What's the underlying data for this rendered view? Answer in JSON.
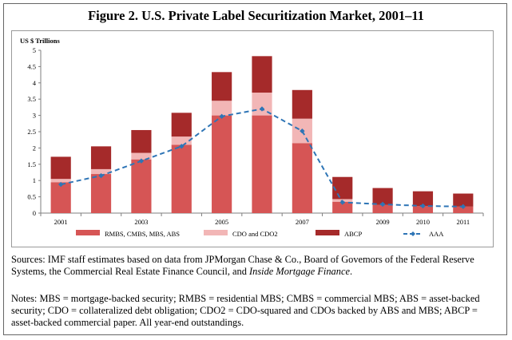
{
  "figure": {
    "title": "Figure 2. U.S. Private Label Securitization Market, 2001–11"
  },
  "chart_data": {
    "type": "bar",
    "stacked": true,
    "ylabel": "US $ Trillions",
    "ylim": [
      0,
      5
    ],
    "yticks": [
      "0",
      "0.5",
      "1",
      "1.5",
      "2",
      "2.5",
      "3",
      "3.5",
      "4",
      "4.5",
      "5"
    ],
    "categories": [
      "2001",
      "2002",
      "2003",
      "2004",
      "2005",
      "2006",
      "2007",
      "2008",
      "2009",
      "2010",
      "2011"
    ],
    "xtick_labels": [
      "2001",
      "",
      "2003",
      "",
      "2005",
      "",
      "2007",
      "",
      "2009",
      "2010",
      "2011"
    ],
    "series": [
      {
        "name": "RMBS, CMBS, MBS, ABS",
        "color": "#d65555",
        "values": [
          0.95,
          1.2,
          1.65,
          2.1,
          3.0,
          3.0,
          2.15,
          0.35,
          0.25,
          0.22,
          0.2
        ]
      },
      {
        "name": "CDO and CDO2",
        "color": "#f2b6b6",
        "values": [
          0.1,
          0.15,
          0.2,
          0.25,
          0.45,
          0.7,
          0.75,
          0.08,
          0.0,
          0.0,
          0.0
        ]
      },
      {
        "name": "ABCP",
        "color": "#a52a2a",
        "values": [
          0.68,
          0.7,
          0.7,
          0.73,
          0.88,
          1.12,
          0.88,
          0.68,
          0.52,
          0.45,
          0.4
        ]
      },
      {
        "name": "AAA",
        "type": "line",
        "color": "#2e75b6",
        "values": [
          0.88,
          1.15,
          1.6,
          2.05,
          2.97,
          3.2,
          2.52,
          0.33,
          0.27,
          0.22,
          0.2
        ]
      }
    ],
    "legend": "bottom"
  },
  "sources": {
    "lead": "Sources: IMF staff estimates based on data from JPMorgan Chase & Co., Board of Govemors of the Federal Reserve Systems, the Commercial Real Estate Finance Council, and ",
    "italic": "Inside Mortgage Finance",
    "tail": "."
  },
  "notes": {
    "text": "Notes: MBS = mortgage-backed security; RMBS = residential MBS; CMBS = commercial MBS; ABS = asset-backed security; CDO = collateralized debt obligation; CDO2 = CDO-squared and CDOs backed by ABS and MBS; ABCP = asset-backed commercial paper. All year-end outstandings."
  }
}
